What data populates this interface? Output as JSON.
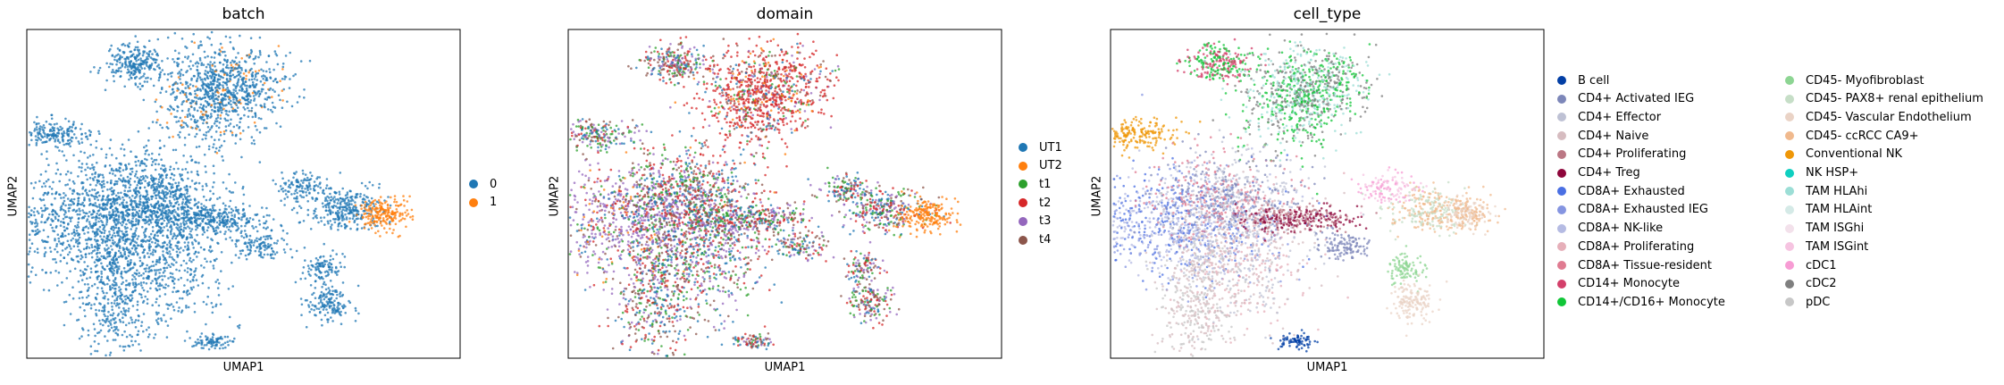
{
  "chart_data": [
    {
      "type": "scatter",
      "title": "batch",
      "xlabel": "UMAP1",
      "ylabel": "UMAP2",
      "legend_position": "right",
      "series": [
        {
          "name": "0",
          "color": "#1f77b4"
        },
        {
          "name": "1",
          "color": "#ff7f0e"
        }
      ]
    },
    {
      "type": "scatter",
      "title": "domain",
      "xlabel": "UMAP1",
      "ylabel": "UMAP2",
      "legend_position": "right",
      "series": [
        {
          "name": "UT1",
          "color": "#1f77b4"
        },
        {
          "name": "UT2",
          "color": "#ff7f0e"
        },
        {
          "name": "t1",
          "color": "#2ca02c"
        },
        {
          "name": "t2",
          "color": "#d62728"
        },
        {
          "name": "t3",
          "color": "#9467bd"
        },
        {
          "name": "t4",
          "color": "#8c564b"
        }
      ]
    },
    {
      "type": "scatter",
      "title": "cell_type",
      "xlabel": "UMAP1",
      "ylabel": "UMAP2",
      "legend_position": "right",
      "series": [
        {
          "name": "B cell",
          "color": "#023fa5"
        },
        {
          "name": "CD4+ Activated IEG",
          "color": "#7d87b9"
        },
        {
          "name": "CD4+ Effector",
          "color": "#bec1d4"
        },
        {
          "name": "CD4+ Naive",
          "color": "#d6bcc0"
        },
        {
          "name": "CD4+ Proliferating",
          "color": "#bb7784"
        },
        {
          "name": "CD4+ Treg",
          "color": "#8e063b"
        },
        {
          "name": "CD8A+ Exhausted",
          "color": "#4a6fe3"
        },
        {
          "name": "CD8A+ Exhausted IEG",
          "color": "#8595e1"
        },
        {
          "name": "CD8A+ NK-like",
          "color": "#b5bbe3"
        },
        {
          "name": "CD8A+ Proliferating",
          "color": "#e6afb9"
        },
        {
          "name": "CD8A+ Tissue-resident",
          "color": "#e07b91"
        },
        {
          "name": "CD14+ Monocyte",
          "color": "#d33f6a"
        },
        {
          "name": "CD14+/CD16+ Monocyte",
          "color": "#11c638"
        },
        {
          "name": "CD45- Myofibroblast",
          "color": "#8dd593"
        },
        {
          "name": "CD45- PAX8+ renal epithelium",
          "color": "#c6dec7"
        },
        {
          "name": "CD45- Vascular Endothelium",
          "color": "#ead3c6"
        },
        {
          "name": "CD45- ccRCC CA9+",
          "color": "#f0b98d"
        },
        {
          "name": "Conventional NK",
          "color": "#ef9708"
        },
        {
          "name": "NK HSP+",
          "color": "#0fcfc0"
        },
        {
          "name": "TAM HLAhi",
          "color": "#9cded6"
        },
        {
          "name": "TAM HLAint",
          "color": "#d5eae7"
        },
        {
          "name": "TAM ISGhi",
          "color": "#f3e1eb"
        },
        {
          "name": "TAM ISGint",
          "color": "#f6c4e1"
        },
        {
          "name": "cDC1",
          "color": "#f79cd4"
        },
        {
          "name": "cDC2",
          "color": "#7f7f7f"
        },
        {
          "name": "pDC",
          "color": "#c7c7c7"
        }
      ]
    }
  ]
}
